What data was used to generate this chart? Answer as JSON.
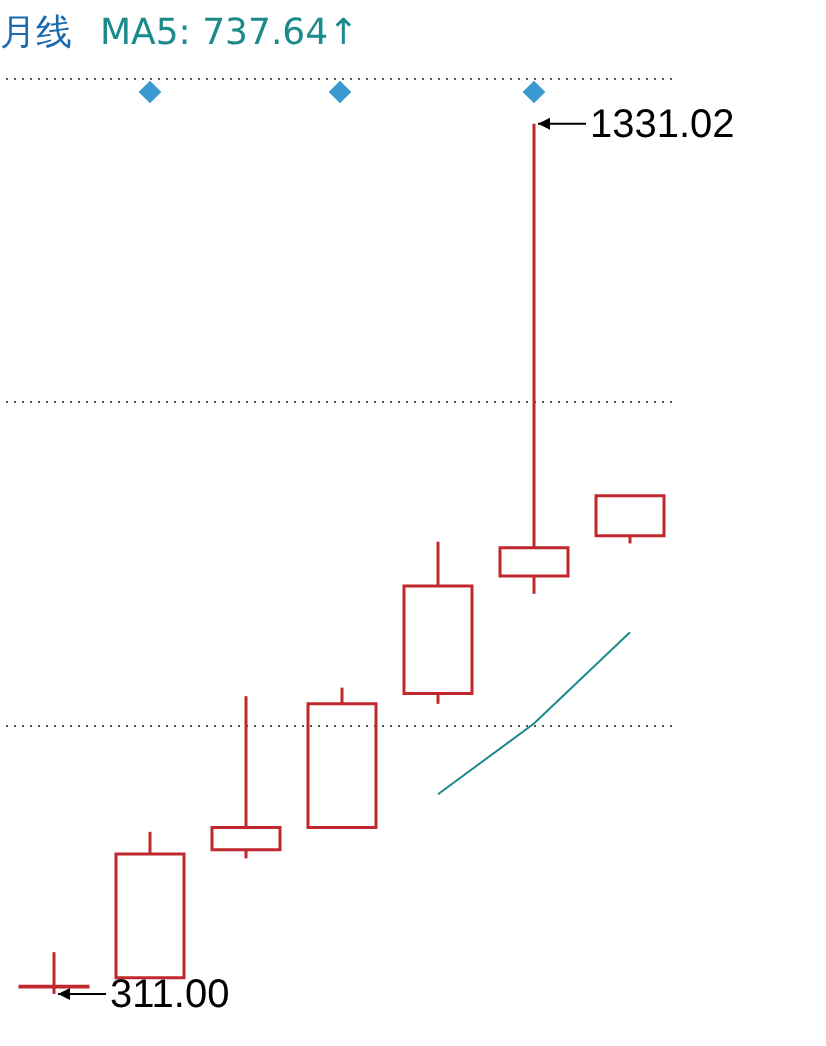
{
  "chart_data": {
    "type": "candlestick",
    "title": "月线",
    "annotations": [
      "MA5: 737.64↑",
      "1331.02",
      "311.00"
    ],
    "categories": [
      null,
      null,
      null,
      null,
      null,
      null,
      null
    ],
    "ohlc": [
      [
        319,
        360,
        311.0,
        320
      ],
      [
        330,
        501,
        330,
        475
      ],
      [
        480,
        660,
        470,
        506
      ],
      [
        506,
        670,
        506,
        651
      ],
      [
        663,
        841,
        651,
        789
      ],
      [
        801,
        1331.02,
        780,
        834
      ],
      [
        848,
        895,
        839,
        895
      ]
    ],
    "series": [
      {
        "type": "line",
        "color": "#1a8a8a",
        "values": [
          null,
          null,
          null,
          null,
          545,
          628,
          735
        ]
      }
    ],
    "color": "#c0282d",
    "ylim": [
      257,
      1476
    ],
    "yticks": [
      {
        "value": 625,
        "label": null
      },
      {
        "value": 1005,
        "label": null
      },
      {
        "value": 1383,
        "label": null
      }
    ],
    "grid": "y"
  }
}
